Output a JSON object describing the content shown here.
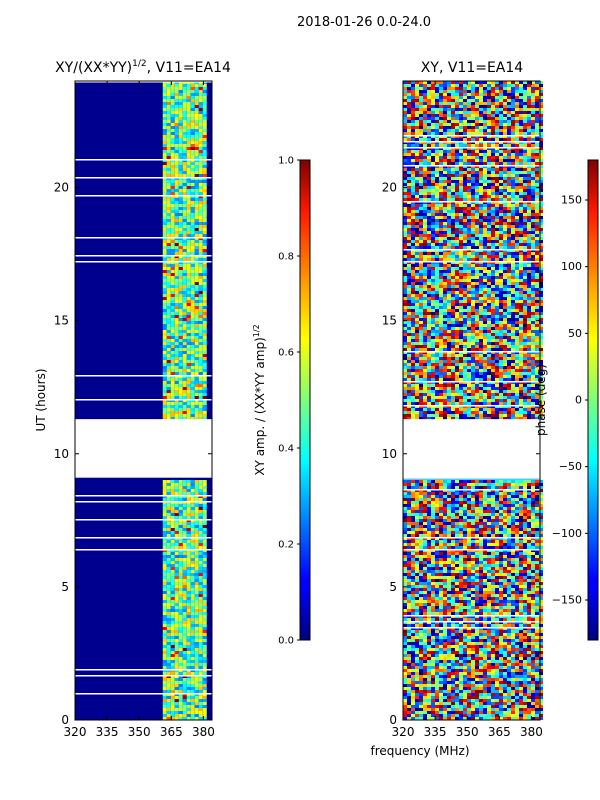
{
  "suptitle": "2018-01-26 0.0-24.0",
  "chart_data": [
    {
      "type": "heatmap",
      "title_main": "XY/(XX*YY)",
      "title_exp": "1/2",
      "title_suffix": ", V11=EA14",
      "xlabel": "",
      "ylabel": "UT (hours)",
      "xlim": [
        320,
        384
      ],
      "ylim": [
        0,
        24
      ],
      "xticks": [
        "320",
        "335",
        "350",
        "365",
        "380"
      ],
      "xtick_values": [
        320,
        335,
        350,
        365,
        380
      ],
      "yticks": [
        "0",
        "5",
        "10",
        "15",
        "20"
      ],
      "ytick_values": [
        0,
        5,
        10,
        15,
        20
      ],
      "data_gap_hours": [
        9.1,
        11.3
      ],
      "active_band_mhz": [
        361,
        381
      ],
      "colormap": "jet",
      "colorbar": {
        "label_main": "XY amp. / (XX*YY amp)",
        "label_exp": "1/2",
        "ticks": [
          "0.0",
          "0.2",
          "0.4",
          "0.6",
          "0.8",
          "1.0"
        ],
        "values": [
          0.0,
          0.2,
          0.4,
          0.6,
          0.8,
          1.0
        ],
        "range": [
          0.0,
          1.0
        ]
      }
    },
    {
      "type": "heatmap",
      "title": "XY, V11=EA14",
      "xlabel": "frequency (MHz)",
      "ylabel": "",
      "xlim": [
        320,
        384
      ],
      "ylim": [
        0,
        24
      ],
      "xticks": [
        "320",
        "335",
        "350",
        "365",
        "380"
      ],
      "xtick_values": [
        320,
        335,
        350,
        365,
        380
      ],
      "yticks": [
        "0",
        "5",
        "10",
        "15",
        "20"
      ],
      "ytick_values": [
        0,
        5,
        10,
        15,
        20
      ],
      "data_gap_hours": [
        9.1,
        11.3
      ],
      "colormap": "jet",
      "colorbar": {
        "label": "phase (deg)",
        "ticks": [
          "−150",
          "−100",
          "−50",
          "0",
          "50",
          "100",
          "150"
        ],
        "values": [
          -150,
          -100,
          -50,
          0,
          50,
          100,
          150
        ],
        "range": [
          -180,
          180
        ]
      }
    }
  ]
}
